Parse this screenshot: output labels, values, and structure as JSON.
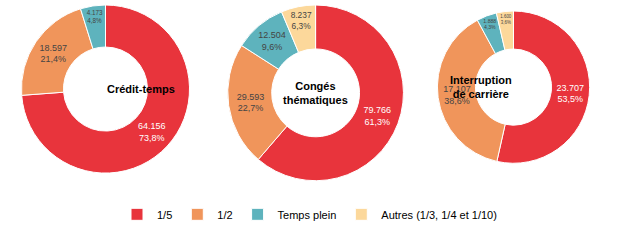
{
  "chart_data": [
    {
      "type": "pie",
      "title": "Crédit-temps",
      "categories": [
        "1/5",
        "1/2",
        "Temps plein"
      ],
      "values": [
        64156,
        18597,
        4173
      ],
      "value_labels": [
        "64.156",
        "18.597",
        "4.173"
      ],
      "percent_labels": [
        "73,8%",
        "21,4%",
        "4,8%"
      ],
      "colors": [
        "#e8343c",
        "#f0955b",
        "#5eb3bd"
      ],
      "legend": "bottom"
    },
    {
      "type": "pie",
      "title": "Congés thématiques",
      "categories": [
        "1/5",
        "1/2",
        "Temps plein",
        "Autres (1/3, 1/4 et 1/10)"
      ],
      "values": [
        79766,
        29593,
        12504,
        8237
      ],
      "value_labels": [
        "79.766",
        "29.593",
        "12.504",
        "8.237"
      ],
      "percent_labels": [
        "61,3%",
        "22,7%",
        "9,6%",
        "6,3%"
      ],
      "colors": [
        "#e8343c",
        "#f0955b",
        "#5eb3bd",
        "#fcd89b"
      ],
      "legend": "bottom"
    },
    {
      "type": "pie",
      "title": "Interruption de carrière",
      "categories": [
        "1/5",
        "1/2",
        "Temps plein",
        "Autres (1/3, 1/4 et 1/10)"
      ],
      "values": [
        23707,
        17107,
        1888,
        1600
      ],
      "value_labels": [
        "23.707",
        "17.107",
        "1.888",
        "1.600"
      ],
      "percent_labels": [
        "53,5%",
        "38,6%",
        "4,3%",
        "3,6%"
      ],
      "colors": [
        "#e8343c",
        "#f0955b",
        "#5eb3bd",
        "#fcd89b"
      ],
      "legend": "bottom"
    }
  ]
}
